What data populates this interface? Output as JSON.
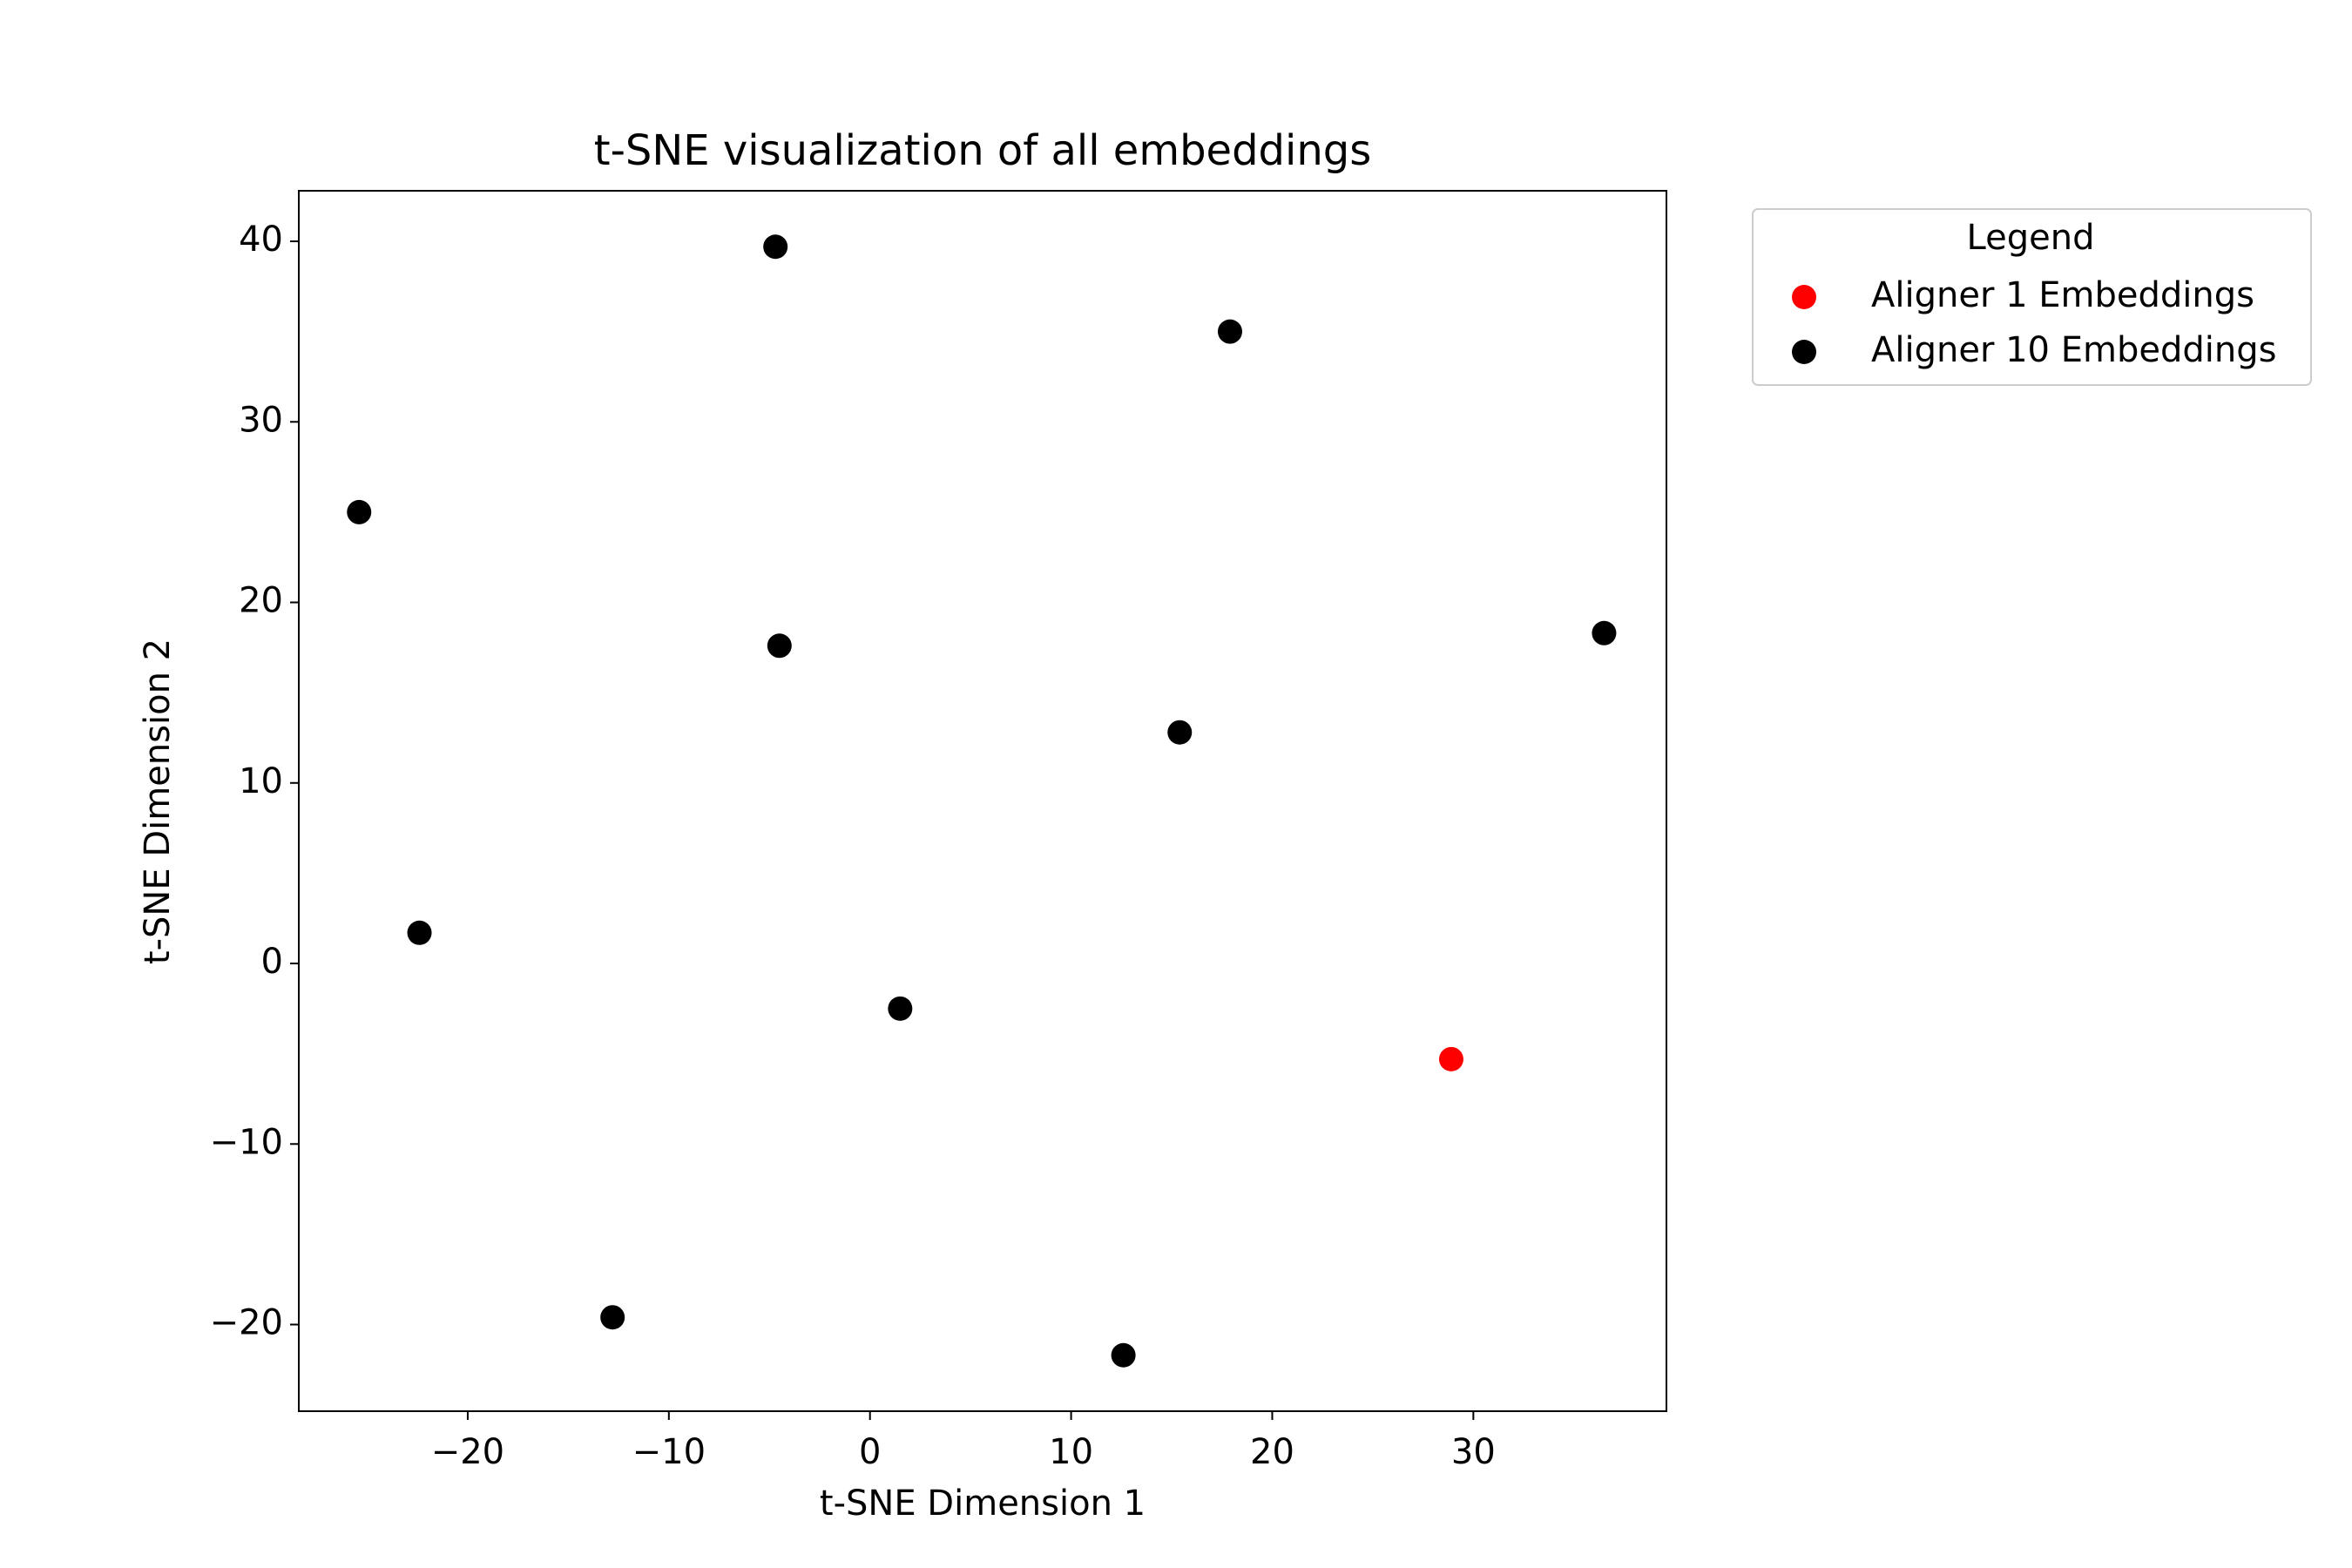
{
  "chart_data": {
    "type": "scatter",
    "title": "t-SNE visualization of all embeddings",
    "x_label": "t-SNE Dimension 1",
    "y_label": "t-SNE Dimension 2",
    "legend_title": "Legend",
    "legend": "outside",
    "xlim": [
      -28.4,
      39.6
    ],
    "ylim": [
      -24.8,
      42.8
    ],
    "xticks": [
      {
        "value": -20,
        "label": "−20"
      },
      {
        "value": -10,
        "label": "−10"
      },
      0,
      10,
      20,
      30
    ],
    "yticks": [
      {
        "value": -20,
        "label": "−20"
      },
      {
        "value": -10,
        "label": "−10"
      },
      0,
      10,
      20,
      30,
      40
    ],
    "series": [
      {
        "name": "Aligner 1 Embeddings",
        "color": "#ff0000",
        "x": [
          28.9
        ],
        "values": [
          -5.3
        ]
      },
      {
        "name": "Aligner 10 Embeddings",
        "color": "#000000",
        "x": [
          -4.7,
          17.9,
          -25.4,
          36.5,
          -4.5,
          15.4,
          -22.4,
          1.5,
          -12.8,
          12.6
        ],
        "values": [
          39.7,
          35.0,
          25.0,
          18.3,
          17.6,
          12.8,
          1.7,
          -2.5,
          -19.6,
          -21.7
        ]
      }
    ]
  }
}
